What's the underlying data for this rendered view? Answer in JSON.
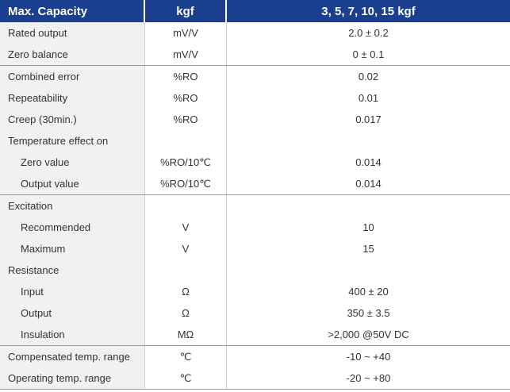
{
  "header": {
    "col1": "Max. Capacity",
    "col2": "kgf",
    "col3": "3, 5, 7, 10, 15 kgf"
  },
  "groups": [
    [
      {
        "label": "Rated output",
        "unit": "mV/V",
        "value": "2.0 ± 0.2",
        "indent": false
      },
      {
        "label": "Zero balance",
        "unit": "mV/V",
        "value": "0 ± 0.1",
        "indent": false
      }
    ],
    [
      {
        "label": "Combined error",
        "unit": "%RO",
        "value": "0.02",
        "indent": false
      },
      {
        "label": "Repeatability",
        "unit": "%RO",
        "value": "0.01",
        "indent": false
      },
      {
        "label": "Creep (30min.)",
        "unit": "%RO",
        "value": "0.017",
        "indent": false
      },
      {
        "label": "Temperature effect on",
        "unit": "",
        "value": "",
        "indent": false
      },
      {
        "label": "Zero value",
        "unit": "%RO/10℃",
        "value": "0.014",
        "indent": true
      },
      {
        "label": "Output  value",
        "unit": "%RO/10℃",
        "value": "0.014",
        "indent": true
      }
    ],
    [
      {
        "label": "Excitation",
        "unit": "",
        "value": "",
        "indent": false
      },
      {
        "label": "Recommended",
        "unit": "V",
        "value": "10",
        "indent": true
      },
      {
        "label": "Maximum",
        "unit": "V",
        "value": "15",
        "indent": true
      },
      {
        "label": "Resistance",
        "unit": "",
        "value": "",
        "indent": false
      },
      {
        "label": "Input",
        "unit": "Ω",
        "value": "400 ± 20",
        "indent": true
      },
      {
        "label": "Output",
        "unit": "Ω",
        "value": "350 ± 3.5",
        "indent": true
      },
      {
        "label": "Insulation",
        "unit": "MΩ",
        "value": ">2,000 @50V DC",
        "indent": true
      }
    ],
    [
      {
        "label": "Compensated temp. range",
        "unit": "℃",
        "value": "-10 ~ +40",
        "indent": false
      },
      {
        "label": "Operating temp. range",
        "unit": "℃",
        "value": "-20 ~ +80",
        "indent": false
      }
    ]
  ]
}
